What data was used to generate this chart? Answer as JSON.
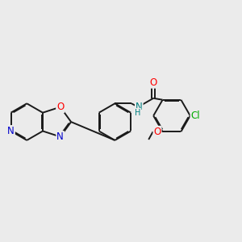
{
  "bg_color": "#ebebeb",
  "bond_color": "#1a1a1a",
  "bond_width": 1.4,
  "atom_colors": {
    "O": "#ff0000",
    "N": "#0000cc",
    "Cl": "#00aa00",
    "N_amide": "#008080",
    "C": "#1a1a1a"
  },
  "font_size": 8.5,
  "figsize": [
    3.0,
    3.0
  ],
  "dpi": 100
}
